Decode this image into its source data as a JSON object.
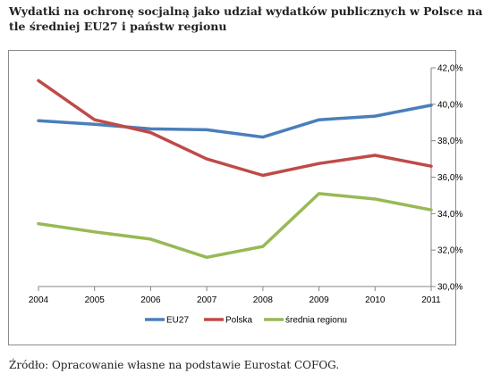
{
  "title": "Wydatki na ochronę socjalną jako udział wydatków publicznych w Polsce na tle średniej EU27 i państw regionu",
  "source": "Źródło: Opracowanie własne na podstawie Eurostat COFOG.",
  "chart_data": {
    "type": "line",
    "x": [
      "2004",
      "2005",
      "2006",
      "2007",
      "2008",
      "2009",
      "2010",
      "2011"
    ],
    "series": [
      {
        "name": "EU27",
        "color": "#4a7ebb",
        "values": [
          39.1,
          38.9,
          38.65,
          38.6,
          38.2,
          39.15,
          39.35,
          39.95
        ]
      },
      {
        "name": "Polska",
        "color": "#be4b48",
        "values": [
          41.3,
          39.15,
          38.45,
          37.0,
          36.1,
          36.75,
          37.2,
          36.6
        ]
      },
      {
        "name": "średnia regionu",
        "color": "#98b954",
        "values": [
          33.45,
          33.0,
          32.6,
          31.6,
          32.2,
          35.1,
          34.8,
          34.2
        ]
      }
    ],
    "ylim": [
      30.0,
      42.0
    ],
    "y_ticks": [
      "30,0%",
      "32,0%",
      "34,0%",
      "36,0%",
      "38,0%",
      "40,0%",
      "42,0%"
    ],
    "y_axis_side": "right",
    "grid": false,
    "legend_position": "bottom"
  }
}
